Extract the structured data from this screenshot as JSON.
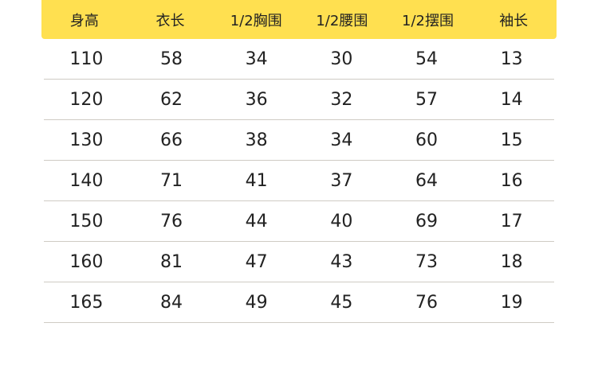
{
  "headers": [
    "身高",
    "衣长",
    "1/2胸围",
    "1/2腰围",
    "1/2摆围",
    "袖长"
  ],
  "rows": [
    [
      "110",
      "58",
      "34",
      "30",
      "54",
      "13"
    ],
    [
      "120",
      "62",
      "36",
      "32",
      "57",
      "14"
    ],
    [
      "130",
      "66",
      "38",
      "34",
      "60",
      "15"
    ],
    [
      "140",
      "71",
      "41",
      "37",
      "64",
      "16"
    ],
    [
      "150",
      "76",
      "44",
      "40",
      "69",
      "17"
    ],
    [
      "160",
      "81",
      "47",
      "43",
      "73",
      "18"
    ],
    [
      "165",
      "84",
      "49",
      "45",
      "76",
      "19"
    ]
  ],
  "colors": {
    "header_bg": "#FFE050",
    "divider": "#cfcbc4"
  }
}
